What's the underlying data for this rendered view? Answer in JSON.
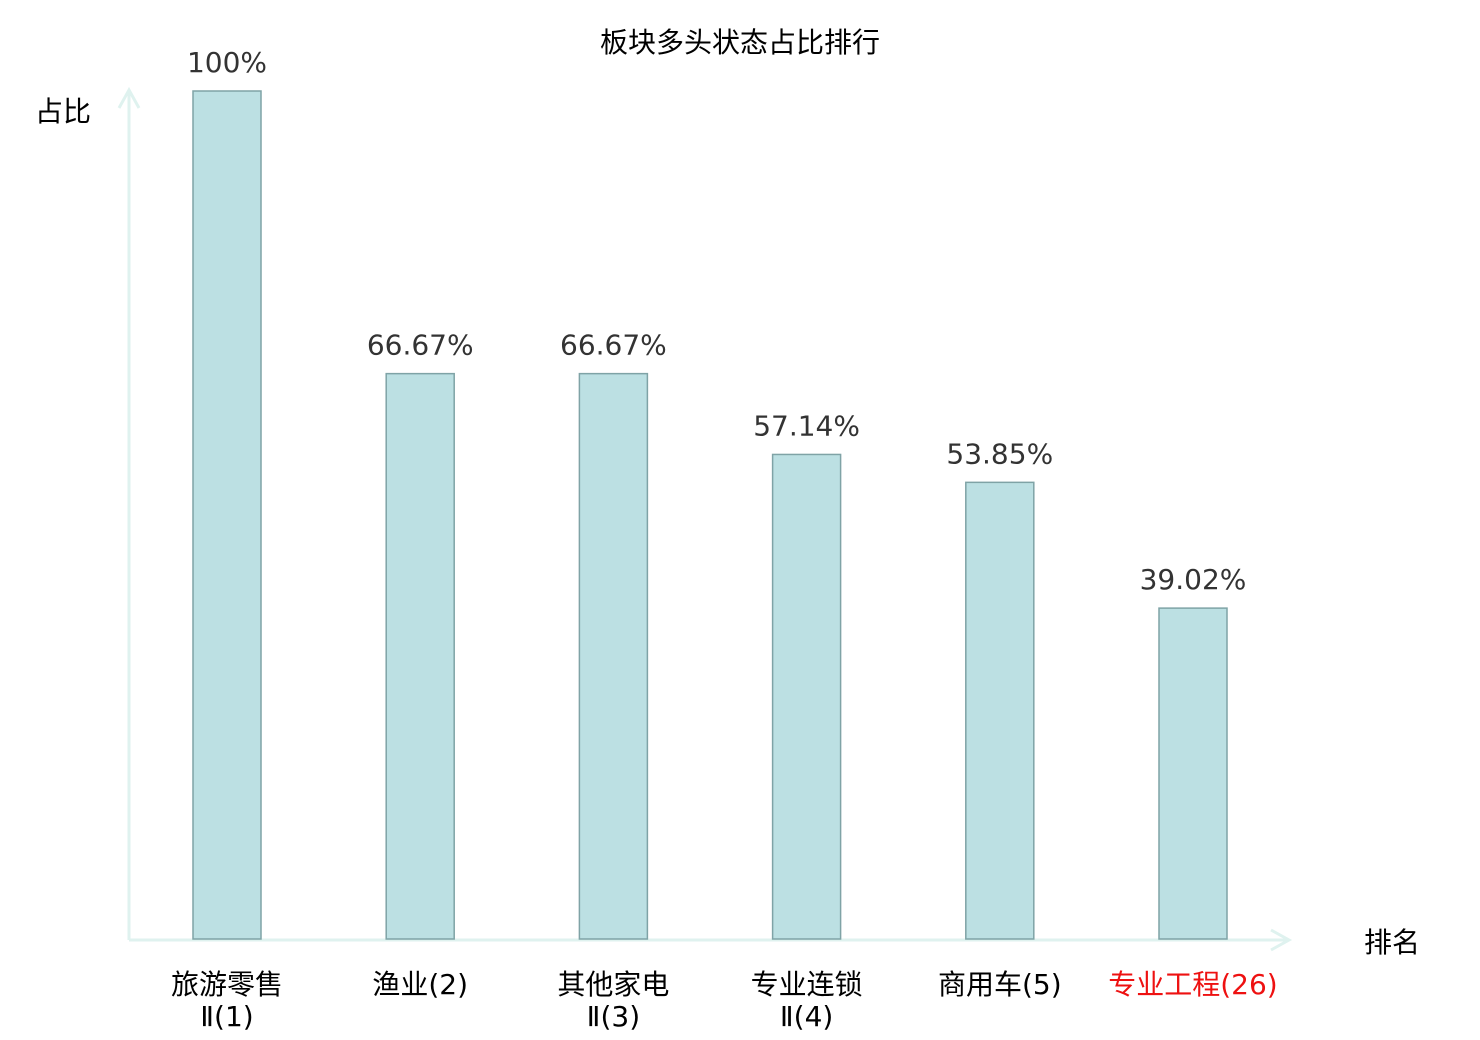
{
  "chart_data": {
    "type": "bar",
    "title": "板块多头状态占比排行",
    "ylabel": "占比",
    "xlabel": "排名",
    "ylim": [
      0,
      100
    ],
    "categories": [
      {
        "line1": "旅游零售",
        "line2": "Ⅱ(1)",
        "highlight": false
      },
      {
        "line1": "渔业(2)",
        "line2": "",
        "highlight": false
      },
      {
        "line1": "其他家电",
        "line2": "Ⅱ(3)",
        "highlight": false
      },
      {
        "line1": "专业连锁",
        "line2": "Ⅱ(4)",
        "highlight": false
      },
      {
        "line1": "商用车(5)",
        "line2": "",
        "highlight": false
      },
      {
        "line1": "专业工程(26)",
        "line2": "",
        "highlight": true
      }
    ],
    "values": [
      100,
      66.67,
      66.67,
      57.14,
      53.85,
      39.02
    ],
    "value_labels": [
      "100%",
      "66.67%",
      "66.67%",
      "57.14%",
      "53.85%",
      "39.02%"
    ],
    "colors": {
      "bar": "#bce0e3",
      "bar_edge": "#7fa3a6",
      "axis": "#dff2ef",
      "highlight": "#ee1111",
      "text": "#333333"
    }
  }
}
